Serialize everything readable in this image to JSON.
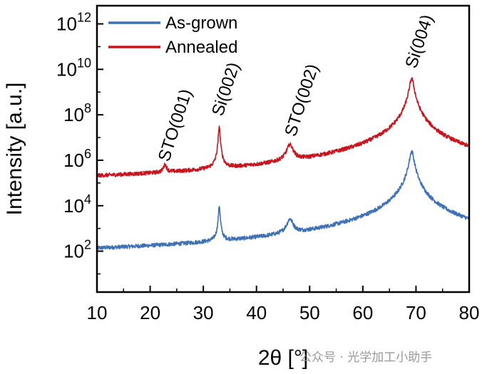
{
  "chart_data": {
    "type": "line",
    "title": "",
    "xlabel": "2θ [°]",
    "ylabel": "Intensity [a.u.]",
    "xlim": [
      10,
      80
    ],
    "ylim_log10": [
      0.2,
      12.8
    ],
    "y_scale": "log",
    "x_ticks": [
      10,
      20,
      30,
      40,
      50,
      60,
      70,
      80
    ],
    "y_ticks": [
      {
        "base": "10",
        "exp": "2",
        "log": 2
      },
      {
        "base": "10",
        "exp": "4",
        "log": 4
      },
      {
        "base": "10",
        "exp": "6",
        "log": 6
      },
      {
        "base": "10",
        "exp": "8",
        "log": 8
      },
      {
        "base": "10",
        "exp": "10",
        "log": 10
      },
      {
        "base": "10",
        "exp": "12",
        "log": 12
      }
    ],
    "legend_position": "top-left",
    "series": [
      {
        "name": "As-grown",
        "color": "#3f72b5",
        "baseline_log": 1.7,
        "noise_log": 0.35,
        "drop_floor_log": 0.8,
        "peaks": [
          {
            "x": 33.0,
            "height_log": 4.0,
            "width": 0.12
          },
          {
            "x": 46.3,
            "height_log": 3.3,
            "width": 0.55
          },
          {
            "x": 69.2,
            "height_log": 6.4,
            "width": 0.35
          }
        ]
      },
      {
        "name": "Annealed",
        "color": "#c8141e",
        "baseline_log": 4.85,
        "noise_log": 0.35,
        "drop_floor_log": 4.0,
        "peaks": [
          {
            "x": 22.8,
            "height_log": 5.55,
            "width": 0.3
          },
          {
            "x": 33.0,
            "height_log": 7.5,
            "width": 0.12
          },
          {
            "x": 46.3,
            "height_log": 6.6,
            "width": 0.55
          },
          {
            "x": 69.2,
            "height_log": 9.6,
            "width": 0.35
          }
        ]
      }
    ],
    "annotations": [
      {
        "text": "STO(001)",
        "x": 23.5,
        "y_log": 5.9
      },
      {
        "text": "Si(002)",
        "x": 33.6,
        "y_log": 7.9
      },
      {
        "text": "STO(002)",
        "x": 47.3,
        "y_log": 7.0
      },
      {
        "text": "Si(004)",
        "x": 70.0,
        "y_log": 10.0
      }
    ]
  },
  "watermark": "公众号 · 光学加工小助手"
}
